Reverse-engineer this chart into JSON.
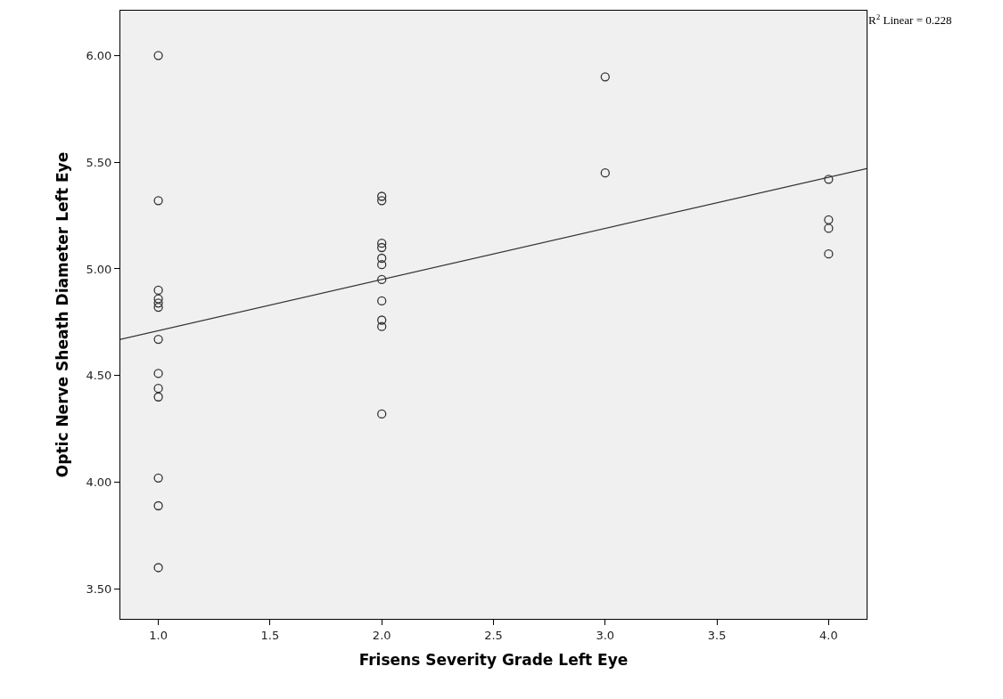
{
  "chart_data": {
    "type": "scatter",
    "xlabel": "Frisens Severity Grade Left Eye",
    "ylabel": "Optic Nerve Sheath Diameter Left Eye",
    "annotations": [
      "R$^{2}$ Linear = 0.228"
    ],
    "series": [
      {
        "color": "#333333",
        "marker": "circle",
        "x": [
          1,
          1,
          1,
          1,
          1,
          1,
          1,
          1,
          1,
          1,
          1,
          1,
          1,
          2,
          2,
          2,
          2,
          2,
          2,
          2,
          2,
          2,
          2,
          2,
          3,
          3,
          4,
          4,
          4,
          4
        ],
        "values": [
          6.0,
          5.32,
          4.9,
          4.86,
          4.84,
          4.82,
          4.67,
          4.51,
          4.44,
          4.4,
          4.02,
          3.89,
          3.6,
          5.34,
          5.32,
          5.12,
          5.1,
          5.05,
          5.02,
          4.95,
          4.85,
          4.76,
          4.73,
          4.32,
          5.9,
          5.45,
          5.42,
          5.23,
          5.19,
          5.07
        ]
      },
      {
        "type": "line",
        "color": "#333333",
        "line_style": "solid",
        "x": [
          0.83,
          4.17
        ],
        "values": [
          4.67,
          5.47
        ]
      }
    ],
    "xlim": [
      0.83,
      4.17
    ],
    "ylim": [
      3.36,
      6.21
    ],
    "xticks": [
      {
        "value": 1,
        "label": "1.0"
      },
      {
        "value": 1.5,
        "label": "1.5"
      },
      {
        "value": 2,
        "label": "2.0"
      },
      {
        "value": 2.5,
        "label": "2.5"
      },
      {
        "value": 3,
        "label": "3.0"
      },
      {
        "value": 3.5,
        "label": "3.5"
      },
      {
        "value": 4,
        "label": "4.0"
      }
    ],
    "yticks": [
      {
        "value": 3.5,
        "label": "3.50"
      },
      {
        "value": 4,
        "label": "4.00"
      },
      {
        "value": 4.5,
        "label": "4.50"
      },
      {
        "value": 5,
        "label": "5.00"
      },
      {
        "value": 5.5,
        "label": "5.50"
      },
      {
        "value": 6,
        "label": "6.00"
      }
    ],
    "grid": false
  }
}
